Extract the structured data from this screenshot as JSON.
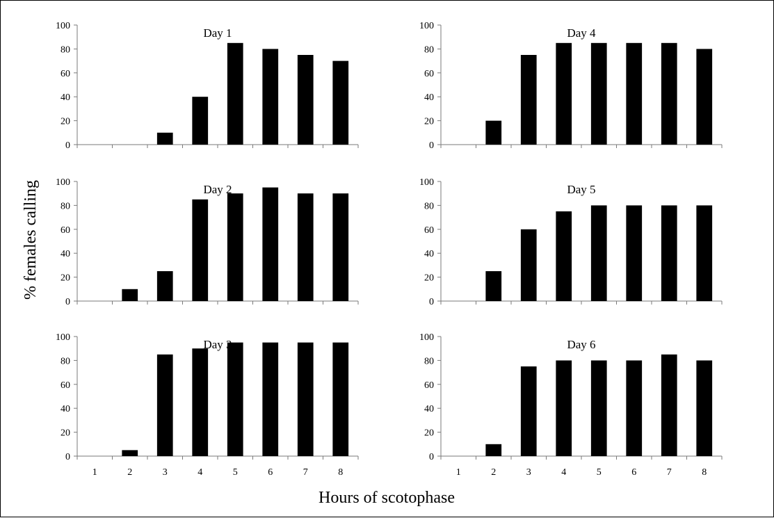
{
  "figure": {
    "ylabel": "% females calling",
    "xlabel": "Hours of scotophase"
  },
  "chart_data": [
    {
      "type": "bar",
      "title": "Day 1",
      "categories": [
        "1",
        "2",
        "3",
        "4",
        "5",
        "6",
        "7",
        "8"
      ],
      "values": [
        0,
        0,
        10,
        40,
        85,
        80,
        75,
        70
      ],
      "ylim": [
        0,
        100
      ],
      "yticks": [
        "0",
        "20",
        "40",
        "60",
        "80",
        "100"
      ],
      "show_x_tick_labels": false
    },
    {
      "type": "bar",
      "title": "Day 4",
      "categories": [
        "1",
        "2",
        "3",
        "4",
        "5",
        "6",
        "7",
        "8"
      ],
      "values": [
        0,
        20,
        75,
        85,
        85,
        85,
        85,
        80
      ],
      "ylim": [
        0,
        100
      ],
      "yticks": [
        "0",
        "20",
        "40",
        "60",
        "80",
        "100"
      ],
      "show_x_tick_labels": false
    },
    {
      "type": "bar",
      "title": "Day 2",
      "categories": [
        "1",
        "2",
        "3",
        "4",
        "5",
        "6",
        "7",
        "8"
      ],
      "values": [
        0,
        10,
        25,
        85,
        90,
        95,
        90,
        90
      ],
      "ylim": [
        0,
        100
      ],
      "yticks": [
        "0",
        "20",
        "40",
        "60",
        "80",
        "100"
      ],
      "show_x_tick_labels": false
    },
    {
      "type": "bar",
      "title": "Day 5",
      "categories": [
        "1",
        "2",
        "3",
        "4",
        "5",
        "6",
        "7",
        "8"
      ],
      "values": [
        0,
        25,
        60,
        75,
        80,
        80,
        80,
        80
      ],
      "ylim": [
        0,
        100
      ],
      "yticks": [
        "0",
        "20",
        "40",
        "60",
        "80",
        "100"
      ],
      "show_x_tick_labels": false
    },
    {
      "type": "bar",
      "title": "Day 3",
      "categories": [
        "1",
        "2",
        "3",
        "4",
        "5",
        "6",
        "7",
        "8"
      ],
      "values": [
        0,
        5,
        85,
        90,
        95,
        95,
        95,
        95
      ],
      "ylim": [
        0,
        100
      ],
      "yticks": [
        "0",
        "20",
        "40",
        "60",
        "80",
        "100"
      ],
      "show_x_tick_labels": true
    },
    {
      "type": "bar",
      "title": "Day 6",
      "categories": [
        "1",
        "2",
        "3",
        "4",
        "5",
        "6",
        "7",
        "8"
      ],
      "values": [
        0,
        10,
        75,
        80,
        80,
        80,
        85,
        80
      ],
      "ylim": [
        0,
        100
      ],
      "yticks": [
        "0",
        "20",
        "40",
        "60",
        "80",
        "100"
      ],
      "show_x_tick_labels": true
    }
  ],
  "colors": {
    "bar": "#000000",
    "axis": "#7a7a7a",
    "text": "#000000"
  }
}
